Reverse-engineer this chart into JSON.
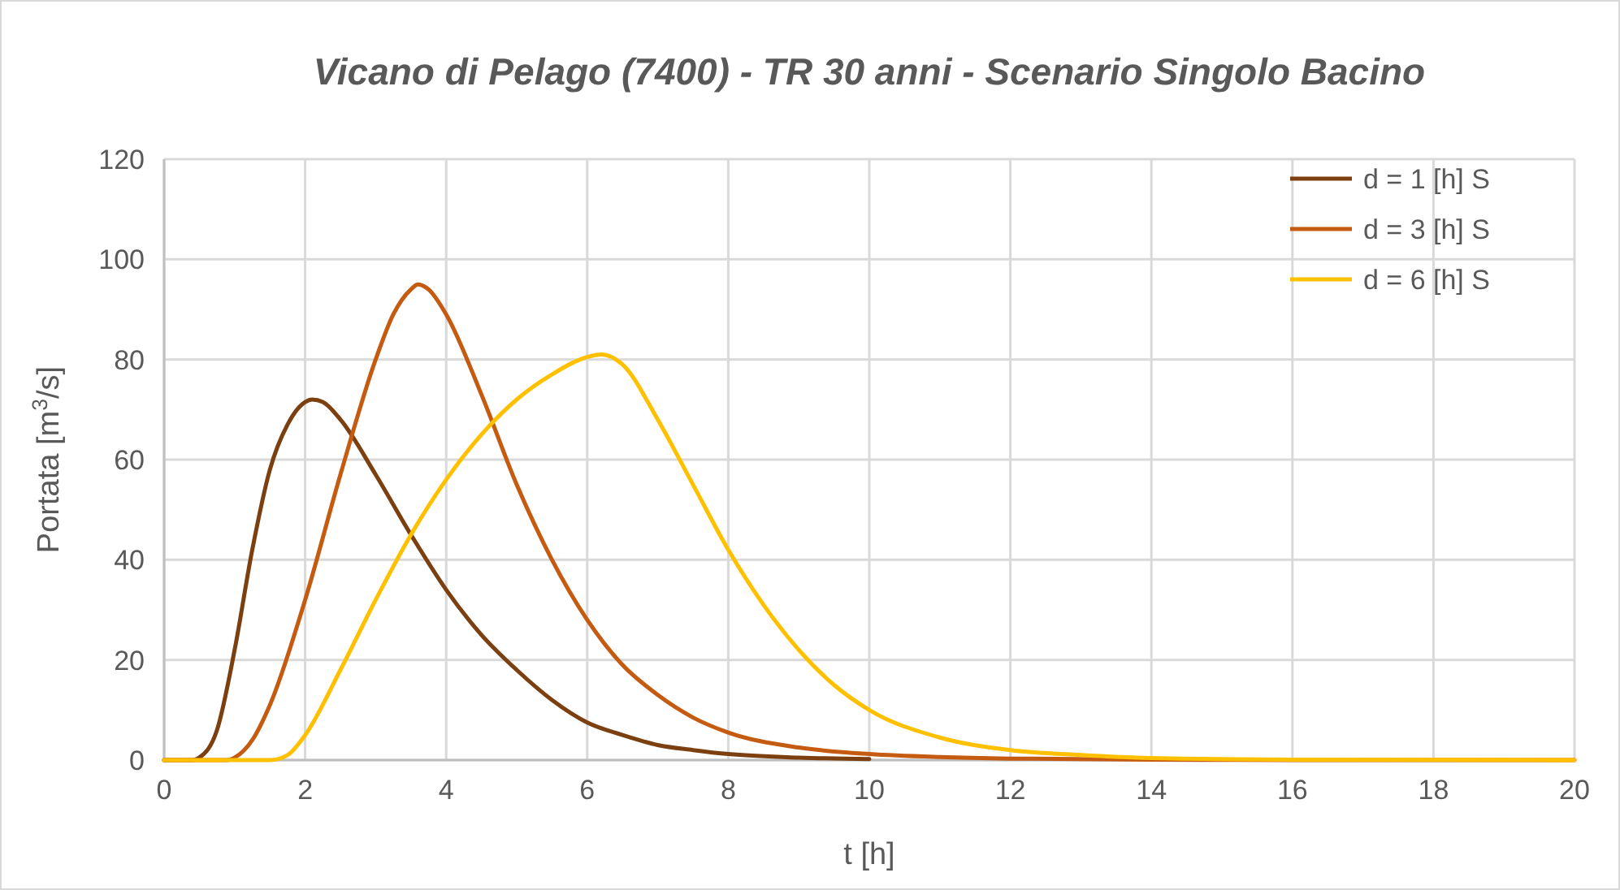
{
  "chart_data": {
    "type": "line",
    "title": "Vicano di Pelago (7400) - TR 30 anni - Scenario Singolo Bacino",
    "xlabel": "t [h]",
    "ylabel": "Portata [m$^{3}$/s]",
    "xlim": [
      0,
      20
    ],
    "xticks": [
      0,
      2,
      4,
      6,
      8,
      10,
      12,
      14,
      16,
      18,
      20
    ],
    "ylim": [
      0,
      120
    ],
    "yticks": [
      0,
      20,
      40,
      60,
      80,
      100,
      120
    ],
    "grid": true,
    "legend": "top right",
    "marker": "none",
    "line_style": "solid",
    "series": [
      {
        "name": "d = 1 [h] S",
        "color": "#7b3f10",
        "x": [
          0,
          0.4,
          0.5,
          0.75,
          1,
          1.25,
          1.5,
          1.75,
          2,
          2.1,
          2.25,
          2.5,
          3,
          3.5,
          4,
          4.5,
          5,
          5.5,
          6,
          6.5,
          7,
          7.5,
          8,
          9,
          10
        ],
        "values": [
          0,
          0,
          0.5,
          6,
          22,
          42,
          58,
          67,
          71.5,
          72,
          71.5,
          68,
          57,
          45,
          34,
          25,
          18,
          12,
          7.5,
          5,
          3,
          2,
          1.2,
          0.5,
          0.2
        ]
      },
      {
        "name": "d = 3 [h] S",
        "color": "#c55a11",
        "x": [
          0,
          0.9,
          1,
          1.25,
          1.5,
          2,
          2.5,
          3,
          3.25,
          3.5,
          3.6,
          3.75,
          4,
          4.5,
          5,
          5.5,
          6,
          6.5,
          7,
          7.5,
          8,
          9,
          10,
          11,
          12,
          14,
          16,
          20
        ],
        "values": [
          0,
          0,
          0.5,
          4,
          11,
          32,
          57,
          80,
          89,
          94,
          95,
          94,
          89,
          73,
          55,
          40,
          28,
          19,
          13,
          8.5,
          5.5,
          2.5,
          1.2,
          0.6,
          0.3,
          0.1,
          0,
          0
        ]
      },
      {
        "name": "d = 6 [h] S",
        "color": "#ffc000",
        "x": [
          0,
          1.5,
          1.75,
          2,
          2.5,
          3,
          3.5,
          4,
          4.5,
          5,
          5.5,
          6,
          6.2,
          6.5,
          7,
          7.5,
          8,
          8.5,
          9,
          9.5,
          10,
          11,
          12,
          13,
          14,
          16,
          20
        ],
        "values": [
          0,
          0,
          1,
          5,
          18,
          32,
          45,
          56,
          65,
          72,
          77,
          80.5,
          81,
          79,
          68,
          55,
          42,
          31,
          22,
          15,
          10,
          4.5,
          2,
          1,
          0.4,
          0.1,
          0
        ]
      }
    ]
  }
}
